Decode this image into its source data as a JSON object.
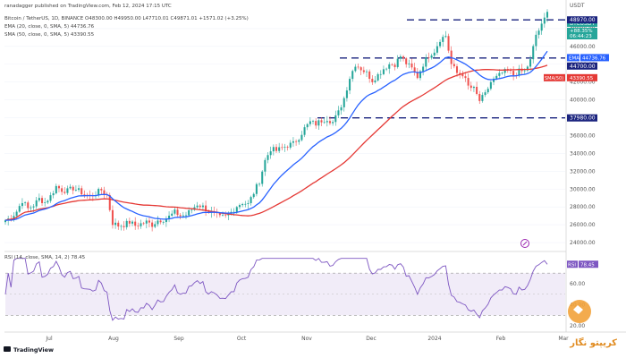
{
  "header": {
    "author": "ranadagger published on TradingView.com, Feb 12, 2024 17:15 UTC",
    "symbol_line": "Bitcoin / TetherUS, 1D, BINANCE O48300.00 H49950.00 L47710.01 C49871.01 +1571.02 (+3.25%)",
    "ema_line": "EMA (20, close, 0, SMA, 5) 44736.76",
    "sma_line": "SMA (50, close, 0, SMA, 5) 43390.55",
    "rsi_line": "RSI (14, close, SMA, 14, 2) 78.45"
  },
  "price_tags": {
    "ticker": "BTCUSDT",
    "change": "+88.35%",
    "countdown": "06:44:23",
    "level_upper": "48970.00",
    "ema_label": "EMA",
    "ema_value": "44736.76",
    "level_mid": "44700.00",
    "sma_label": "SMA(50)",
    "sma_value": "43390.55",
    "level_low": "37980.00",
    "rsi_label": "RSI",
    "rsi_value": "78.45",
    "currency": "USDT"
  },
  "footer": {
    "brand": "TradingView",
    "watermark": "کریپتو نگار"
  },
  "colors": {
    "up": "#26a69a",
    "down": "#ef5350",
    "ema": "#2962ff",
    "sma": "#e53935",
    "rsi": "#7e57c2",
    "level": "#1a237e"
  },
  "chart_data": {
    "type": "candlestick",
    "title": "Bitcoin / TetherUS, 1D, BINANCE",
    "x_tick_labels": [
      "Jul",
      "Aug",
      "Sep",
      "Oct",
      "Nov",
      "Dec",
      "2024",
      "Feb",
      "Mar"
    ],
    "price_axis_ticks": [
      24000,
      26000,
      28000,
      30000,
      32000,
      34000,
      36000,
      38000,
      40000,
      42000,
      44000,
      46000,
      48000
    ],
    "ylim": [
      23000,
      51000
    ],
    "rsi_axis_ticks": [
      20,
      40,
      60
    ],
    "rsi_ylim": [
      15,
      88
    ],
    "rsi_bands": [
      30,
      70
    ],
    "horizontal_levels": [
      48970,
      44700,
      37980
    ],
    "series": [
      {
        "name": "BTCUSDT",
        "type": "candlestick",
        "weekly_closes": [
          26500,
          26800,
          27500,
          28700,
          27800,
          28200,
          28900,
          28500,
          29200,
          30300,
          29900,
          29800,
          30100,
          29800,
          29400,
          29200,
          29500,
          29900,
          29300,
          26200,
          25900,
          26000,
          26300,
          25900,
          26100,
          26300,
          26000,
          26500,
          26600,
          26900,
          27400,
          27000,
          27100,
          27700,
          28300,
          28000,
          27500,
          27200,
          26800,
          26900,
          27400,
          28100,
          28500,
          28300,
          29600,
          30900,
          33200,
          34500,
          34300,
          34600,
          34900,
          35100,
          35800,
          36800,
          37500,
          37300,
          37700,
          37900,
          37500,
          38600,
          40200,
          42500,
          44000,
          43500,
          43000,
          42200,
          42800,
          43500,
          44000,
          44000,
          44900,
          44100,
          43500,
          42600,
          44000,
          45000,
          45500,
          46800,
          47200,
          44000,
          43000,
          42900,
          41500,
          41200,
          39900,
          40600,
          42000,
          42500,
          43000,
          43300,
          42800,
          43200,
          43200,
          44400,
          47300,
          48300,
          49871
        ]
      },
      {
        "name": "EMA (20)",
        "type": "line",
        "last": 44736.76
      },
      {
        "name": "SMA (50)",
        "type": "line",
        "last": 43390.55
      },
      {
        "name": "RSI (14)",
        "type": "line",
        "last": 78.45
      }
    ]
  }
}
